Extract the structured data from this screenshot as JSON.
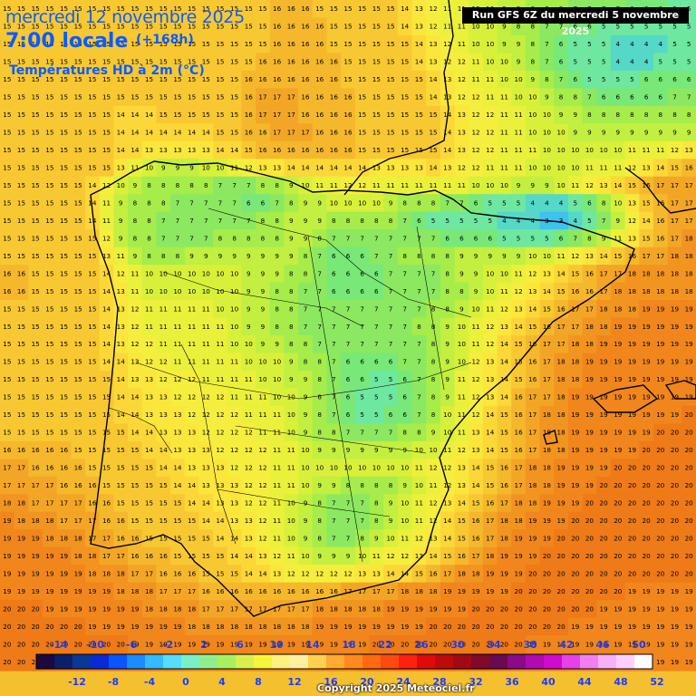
{
  "header": {
    "date_line": "mercredi 12 novembre 2025",
    "time_line": "7:00 locale",
    "lead_time": "(+168h)",
    "parameter": "Températures HD à 2m (°C)",
    "run_info": "Run GFS 6Z du mercredi 5 novembre 2025"
  },
  "footer": {
    "copyright": "Copyright 2025 Meteociel.fr"
  },
  "colorbar": {
    "top_labels": [
      "-14",
      "-10",
      "-6",
      "-2",
      "2",
      "6",
      "10",
      "14",
      "18",
      "22",
      "26",
      "30",
      "34",
      "38",
      "42",
      "46",
      "50"
    ],
    "bottom_labels": [
      "-12",
      "-8",
      "-4",
      "0",
      "4",
      "8",
      "12",
      "16",
      "20",
      "24",
      "28",
      "32",
      "36",
      "40",
      "44",
      "48",
      "52"
    ],
    "colors": [
      "#1a0a40",
      "#0d1e6b",
      "#0a3896",
      "#0a2ad8",
      "#0a55ff",
      "#1a8cff",
      "#33bbff",
      "#55ddff",
      "#7af0c8",
      "#90ee90",
      "#a8f060",
      "#d7f050",
      "#f5f53c",
      "#fff080",
      "#fff0a0",
      "#ffd050",
      "#ffaa30",
      "#ff8a20",
      "#ff6a10",
      "#ff4a10",
      "#ff2010",
      "#e00a0a",
      "#c00a0a",
      "#a00a14",
      "#800a28",
      "#6a0a50",
      "#8a0a8a",
      "#b00ab0",
      "#d00ad0",
      "#e840e8",
      "#f080f0",
      "#f8b0f8",
      "#ffd0ff",
      "#ffffff"
    ]
  },
  "map_data": {
    "region": "Iberian Peninsula",
    "variable": "2m temperature (°C)",
    "grid_rows": [
      "15 15 15 15 15 15 15 15 15 15 15 15 15 15 15 15 15 15 15 16 16 16 15 15 15 15 15 15 14 13 12 11 11 10 10 9 9 8 8 8 7 7 7 7 6 6 6 5 5",
      "15 15 15 15 15 15 15 15 15 15 15 15 15 15 15 15 15 15 15 16 16 16 16 15 15 15 15 15 14 13 12 11 11 10 10 9 8 8 7 7 6 6 5 5 5 5 5 5 5",
      "15 15 15 15 15 15 15 15 15 15 15 15 15 15 15 15 15 15 15 16 16 16 16 15 15 15 15 15 15 14 13 12 11 10 10 9 9 8 7 6 5 5 5 4 4 4 4 5 5",
      "15 15 15 15 15 15 15 15 15 15 15 15 15 15 15 15 15 15 16 16 16 16 16 16 15 15 15 15 15 14 13 12 12 11 10 10 9 8 7 6 5 5 5 4 4 4 5 5 5",
      "15 15 15 15 15 15 15 15 15 15 15 15 15 15 15 15 15 16 16 16 16 16 16 16 15 15 15 15 15 15 14 13 12 11 11 10 10 9 8 7 6 5 5 5 5 6 6 6 6",
      "15 15 15 15 15 15 15 15 15 15 15 15 15 15 15 15 15 16 17 17 17 16 16 16 16 15 15 15 15 15 14 13 12 12 11 11 10 10 9 8 8 7 6 6 6 6 6 7 7",
      "15 15 15 15 15 15 15 15 14 14 14 15 15 15 15 15 15 16 17 17 17 16 16 16 16 15 15 15 15 15 15 14 13 12 12 11 11 10 10 9 9 8 8 8 8 8 8 8 8",
      "15 15 15 15 15 15 15 15 14 14 14 14 14 14 14 15 15 16 16 17 17 17 16 16 16 15 15 15 15 15 15 14 13 12 12 11 11 10 10 10 9 9 9 9 9 9 9 9 9",
      "15 15 15 15 15 15 15 15 14 14 13 13 13 13 13 14 14 15 16 16 16 16 16 16 16 15 15 15 15 15 15 14 13 12 12 11 11 11 10 10 10 10 10 10 11 11 11 12 13",
      "15 15 15 15 15 15 15 15 13 11 10 9 9 9 10 10 11 12 13 13 14 14 14 14 14 14 13 13 13 13 14 13 12 12 11 11 11 10 10 10 10 11 11 11 12 13 14 15 16",
      "15 15 15 15 15 15 14 12 10 9 8 8 8 8 8 7 7 7 8 8 9 10 11 11 12 12 11 11 11 11 11 11 11 10 10 10 9 9 9 10 11 12 13 14 15 16 17 17 17",
      "15 15 15 15 15 15 14 11 9 8 8 8 7 7 7 7 7 6 6 7 8 9 9 10 10 10 10 9 8 8 8 7 7 6 5 5 5 4 4 4 5 6 8 10 13 15 16 17 17",
      "15 15 15 15 15 15 14 11 9 8 8 7 7 7 7 7 7 7 8 8 9 9 9 8 8 8 8 8 7 6 5 5 5 5 5 4 4 4 3 3 4 5 7 9 12 14 16 17 17",
      "15 15 15 15 15 15 15 12 9 8 8 7 7 7 7 8 8 8 8 8 9 9 8 7 7 7 7 7 7 7 7 6 6 6 6 5 5 5 5 6 7 8 9 11 13 15 16 17 18",
      "15 15 15 15 15 15 15 13 11 9 8 8 8 9 9 9 9 9 9 9 9 8 7 6 6 6 7 7 8 8 8 8 9 9 9 9 9 10 10 11 12 13 14 15 16 17 17 18 18",
      "16 16 15 15 15 15 15 14 12 11 10 10 10 10 10 10 10 9 9 9 8 8 7 6 6 6 6 7 7 7 7 8 9 9 10 10 11 12 13 14 15 16 17 17 18 18 18 18 18",
      "16 16 15 15 15 15 15 14 13 11 10 10 10 10 10 10 10 9 9 8 8 7 7 6 6 6 6 7 7 7 7 8 8 9 10 11 12 13 14 15 16 16 17 18 18 18 18 18 18",
      "15 15 15 15 15 15 15 14 13 12 11 11 11 11 11 10 10 9 9 8 8 7 7 7 7 7 7 7 7 7 8 8 9 10 11 12 13 14 15 16 17 17 18 18 18 19 19 19 19",
      "15 15 15 15 15 15 15 14 13 12 11 11 11 11 11 11 10 9 9 8 8 7 7 7 7 7 7 7 7 8 8 9 10 11 12 13 14 15 16 17 17 18 18 19 19 19 19 19 19",
      "15 15 15 15 15 15 15 14 13 12 12 11 11 11 11 11 10 10 9 9 8 8 7 7 7 7 7 7 7 7 8 9 10 11 12 14 15 16 17 17 18 18 19 19 19 19 19 19 19",
      "15 15 15 15 15 15 15 14 14 13 12 12 11 11 11 11 11 10 10 10 9 8 8 7 6 6 6 6 7 7 8 9 10 12 13 14 15 16 17 18 18 19 19 19 19 19 19 19 19",
      "15 15 15 15 15 15 15 15 14 13 13 12 12 12 11 11 11 11 10 10 9 9 8 7 6 6 5 5 6 7 8 9 11 12 13 14 15 16 17 18 18 19 19 19 19 19 19 19 19",
      "15 15 15 15 15 15 15 15 14 14 13 13 12 12 12 12 11 11 11 10 10 9 8 7 6 5 5 5 6 7 8 9 11 12 13 14 16 17 17 18 19 19 19 19 19 19 19 19 19",
      "15 15 15 15 15 15 15 15 14 14 13 13 13 12 12 12 12 11 11 11 10 9 8 7 6 5 5 6 6 7 8 10 11 12 14 15 16 17 18 18 19 19 19 19 19 19 19 19 20",
      "15 15 15 15 15 15 15 15 15 14 14 13 13 13 12 12 12 12 11 11 10 9 8 8 7 7 7 7 8 8 9 10 11 13 14 15 16 17 18 18 19 19 19 19 19 19 20 20 20",
      "16 16 16 16 16 15 15 15 15 15 14 14 13 13 13 12 12 12 12 11 11 10 9 9 9 9 9 9 9 10 10 11 12 13 14 15 16 17 18 18 19 19 19 19 19 20 20 20 20",
      "17 17 16 16 16 16 15 15 15 15 15 14 14 13 13 13 12 12 12 11 11 10 10 10 10 10 10 10 10 11 12 12 13 14 15 16 17 18 18 19 19 19 19 20 20 20 20 20 20",
      "17 17 17 17 16 16 16 15 15 15 15 15 14 14 13 13 13 12 12 11 11 10 9 9 8 8 8 8 9 10 11 12 13 14 15 16 17 18 18 19 19 19 20 20 20 20 20 20 20",
      "18 18 17 17 17 17 16 16 15 15 15 15 15 14 14 13 13 12 12 11 10 9 8 7 7 7 8 9 10 11 12 13 14 15 16 17 18 18 19 19 19 20 20 20 20 20 20 20 20",
      "19 18 18 18 17 17 17 16 16 15 15 15 15 15 14 14 13 13 12 11 10 9 8 7 7 7 8 9 10 11 12 14 15 16 17 18 18 19 19 19 20 20 20 20 20 20 20 20 20",
      "19 19 19 18 18 18 17 17 16 16 15 15 15 15 15 14 14 13 12 11 10 9 8 7 7 8 9 10 11 12 13 14 15 16 17 18 19 19 19 20 20 20 20 20 20 20 20 20 20",
      "19 19 19 19 19 18 18 17 17 16 16 16 15 15 15 15 14 14 13 12 11 10 9 9 9 10 11 12 12 13 14 15 16 17 18 19 19 19 20 20 20 20 20 20 20 20 20 20 20",
      "19 19 19 19 19 19 18 18 18 17 17 16 16 16 15 15 15 14 14 13 12 12 12 12 12 13 13 14 14 15 16 17 18 18 19 19 19 20 20 20 20 20 20 20 20 20 20 20 20",
      "19 19 19 19 19 19 19 19 18 18 18 17 17 17 16 16 16 16 16 16 16 16 16 16 17 17 17 17 18 18 18 19 19 19 19 19 20 20 20 20 20 20 20 20 19 19 19 19 19",
      "20 20 20 19 19 19 19 19 19 19 18 18 18 18 17 17 17 17 17 17 17 17 18 18 18 18 18 19 19 19 19 19 19 20 20 20 20 20 20 20 20 20 19 19 19 19 19 19 19",
      "20 20 20 20 20 20 19 19 19 19 19 19 19 18 18 18 18 18 18 18 18 18 19 19 19 19 19 19 19 19 20 20 20 20 20 20 20 20 20 20 19 19 19 19 19 19 19 19 19",
      "20 20 20 20 20 20 20 20 20 19 19 19 19 19 19 19 19 19 19 19 19 19 19 19 19 19 20 20 20 20 20 20 20 20 20 20 20 19 19 19 19 19 19 19 19 19 19 19 19",
      "20 20 20 20 20 20 20 20 20 20 20 20 20 19 19 19 19 19 19 19 19 19 19 19 19 20 20 20 20 20 20 20 20 20 20 20 19 19 19 19 19 19 19 19 19 19 19 19 19"
    ]
  }
}
